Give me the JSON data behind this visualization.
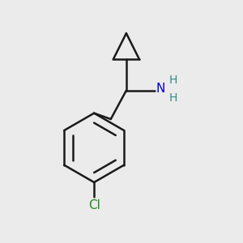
{
  "background_color": "#ebebeb",
  "line_color": "#1a1a1a",
  "n_color": "#0000cc",
  "h_color": "#2e8b8b",
  "cl_color": "#228b22",
  "line_width": 1.8,
  "figsize": [
    3.0,
    3.0
  ],
  "dpi": 100,
  "xlim": [
    0,
    10
  ],
  "ylim": [
    0,
    10
  ]
}
